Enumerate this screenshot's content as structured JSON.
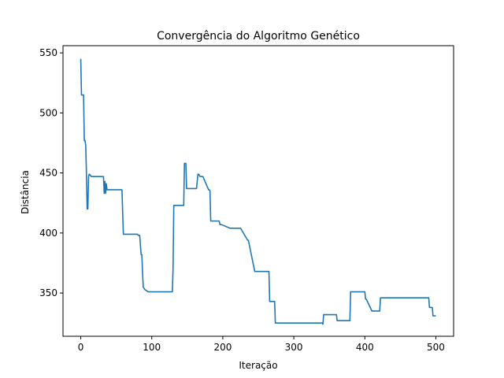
{
  "chart_data": {
    "type": "line",
    "title": "Convergência do Algoritmo Genético",
    "xlabel": "Iteração",
    "ylabel": "Distância",
    "xlim": [
      -25,
      525
    ],
    "ylim": [
      314,
      556
    ],
    "xticks": [
      0,
      100,
      200,
      300,
      400,
      500
    ],
    "yticks": [
      350,
      400,
      450,
      500,
      550
    ],
    "grid": false,
    "line_color": "#1f77b4",
    "series": [
      {
        "x": [
          0,
          1,
          2,
          4,
          5,
          6,
          7,
          8,
          9,
          10,
          11,
          12,
          15,
          16,
          17,
          18,
          20,
          22,
          32,
          33,
          34,
          35,
          36,
          37,
          38,
          40,
          55,
          58,
          60,
          62,
          80,
          81,
          83,
          85,
          86,
          87,
          88,
          90,
          95,
          128,
          129,
          130,
          131,
          132,
          133,
          145,
          146,
          147,
          148,
          149,
          150,
          152,
          163,
          164,
          165,
          166,
          168,
          170,
          172,
          180,
          181,
          182,
          183,
          184,
          195,
          196,
          198,
          210,
          212,
          215,
          225,
          235,
          236,
          245,
          246,
          260,
          265,
          266,
          272,
          273,
          274,
          275,
          276,
          300,
          340,
          341,
          342,
          350,
          360,
          361,
          378,
          379,
          380,
          400,
          401,
          402,
          410,
          411,
          420,
          421,
          422,
          440,
          490,
          491,
          495,
          496,
          500
        ],
        "y": [
          545,
          515,
          515,
          515,
          477,
          477,
          473,
          450,
          420,
          420,
          447,
          449,
          447,
          447,
          447,
          447,
          447,
          447,
          447,
          433,
          443,
          433,
          441,
          436,
          436,
          436,
          436,
          436,
          399,
          399,
          399,
          398,
          398,
          382,
          382,
          367,
          355,
          353,
          351,
          351,
          351,
          371,
          423,
          423,
          423,
          423,
          458,
          458,
          458,
          437,
          437,
          437,
          437,
          443,
          449,
          449,
          447,
          447,
          447,
          436,
          436,
          435,
          410,
          410,
          410,
          407,
          407,
          404,
          404,
          404,
          404,
          394,
          394,
          368,
          368,
          368,
          368,
          343,
          343,
          343,
          325,
          325,
          325,
          325,
          325,
          324,
          332,
          332,
          332,
          327,
          327,
          327,
          351,
          351,
          345,
          345,
          335,
          335,
          335,
          335,
          346,
          346,
          346,
          338,
          338,
          331,
          331
        ]
      }
    ]
  }
}
